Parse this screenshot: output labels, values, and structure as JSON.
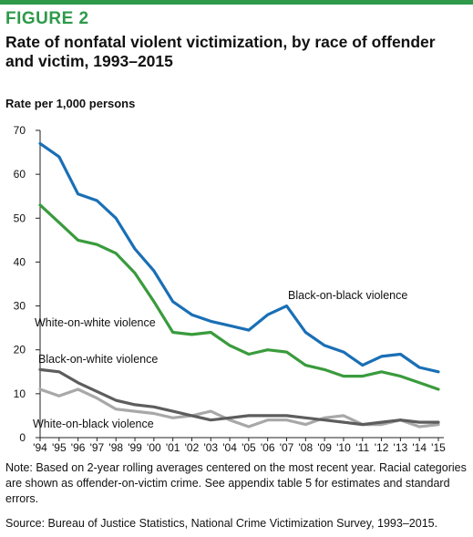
{
  "figure": {
    "label": "FIGURE 2",
    "title": "Rate of nonfatal violent victimization, by race of offender and victim, 1993–2015",
    "note": "Note: Based on 2-year rolling averages centered on the most recent year. Racial categories are shown as offender-on-victim crime. See appendix table 5 for estimates and standard errors.",
    "source": "Source: Bureau of Justice Statistics, National Crime Victimization Survey, 1993–2015."
  },
  "colors": {
    "accent": "#2e9a4a",
    "black_on_black": "#1a6fb5",
    "white_on_white": "#3a9b3d",
    "black_on_white": "#5d5d5d",
    "white_on_black": "#a8a8a8",
    "axis": "#222222"
  },
  "chart_data": {
    "type": "line",
    "ylabel": "Rate per 1,000 persons",
    "xlabel": "",
    "ylim": [
      0,
      70
    ],
    "yticks": [
      0,
      10,
      20,
      30,
      40,
      50,
      60,
      70
    ],
    "grid": false,
    "categories": [
      "'94",
      "'95",
      "'96",
      "'97",
      "'98",
      "'99",
      "'00",
      "'01",
      "'02",
      "'03",
      "'04",
      "'05",
      "'06",
      "'07",
      "'08",
      "'09",
      "'10",
      "'11",
      "'12",
      "'13",
      "'14",
      "'15"
    ],
    "series": [
      {
        "name": "Black-on-black violence",
        "values": [
          67,
          64,
          55.5,
          54,
          50,
          43,
          38,
          31,
          28,
          26.5,
          25.5,
          24.5,
          28,
          30,
          24,
          21,
          19.5,
          16.5,
          18.5,
          19,
          16,
          15
        ]
      },
      {
        "name": "White-on-white violence",
        "values": [
          53,
          49,
          45,
          44,
          42,
          37.5,
          31,
          24,
          23.5,
          24,
          21,
          19,
          20,
          19.5,
          16.5,
          15.5,
          14,
          14,
          15,
          14,
          12.5,
          11
        ]
      },
      {
        "name": "Black-on-white violence",
        "values": [
          15.5,
          15,
          12.5,
          10.5,
          8.5,
          7.5,
          7,
          6,
          5,
          4,
          4.5,
          5,
          5,
          5,
          4.5,
          4,
          3.5,
          3,
          3.5,
          4,
          3.5,
          3.5
        ]
      },
      {
        "name": "White-on-black violence",
        "values": [
          11,
          9.5,
          11,
          9,
          6.5,
          6,
          5.5,
          4.5,
          5,
          6,
          4,
          2.5,
          4,
          4,
          3,
          4.5,
          5,
          3,
          3,
          4,
          2.5,
          3
        ]
      }
    ]
  }
}
